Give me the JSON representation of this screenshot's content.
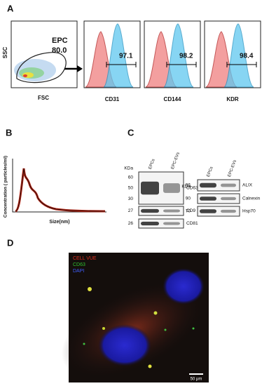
{
  "panel_a": {
    "label": "A",
    "y_axis": "SSC",
    "x_axis": "FSC",
    "gate": {
      "name": "EPC",
      "value": "80.0"
    },
    "histograms": [
      {
        "marker": "CD31",
        "value": "97.1"
      },
      {
        "marker": "CD144",
        "value": "98.2"
      },
      {
        "marker": "KDR",
        "value": "98.4"
      }
    ]
  },
  "panel_b": {
    "label": "B",
    "y_axis": "Concentration ( particles/ml)",
    "x_axis": "Size(nm)"
  },
  "panel_c": {
    "label": "C",
    "blots": [
      {
        "unit": "KDa",
        "lanes": [
          "EPCs",
          "EPC-EVs"
        ],
        "bands": [
          {
            "name": "CD63",
            "markers": [
              "60",
              "50",
              "30"
            ]
          },
          {
            "name": "CD9",
            "markers": [
              "27"
            ]
          },
          {
            "name": "CD81",
            "markers": [
              "26"
            ]
          }
        ]
      },
      {
        "unit": "KDa",
        "lanes": [
          "EPCs",
          "EPC-EVs"
        ],
        "bands": [
          {
            "name": "ALIX",
            "markers": [
              "96"
            ]
          },
          {
            "name": "Calnexin",
            "markers": [
              "90"
            ]
          },
          {
            "name": "Hsp70",
            "markers": [
              "70"
            ]
          }
        ]
      }
    ]
  },
  "panel_d": {
    "label": "D",
    "legend": [
      "CELL VUE",
      "CD63",
      "DAPI"
    ],
    "scale_bar": "50 μm"
  }
}
